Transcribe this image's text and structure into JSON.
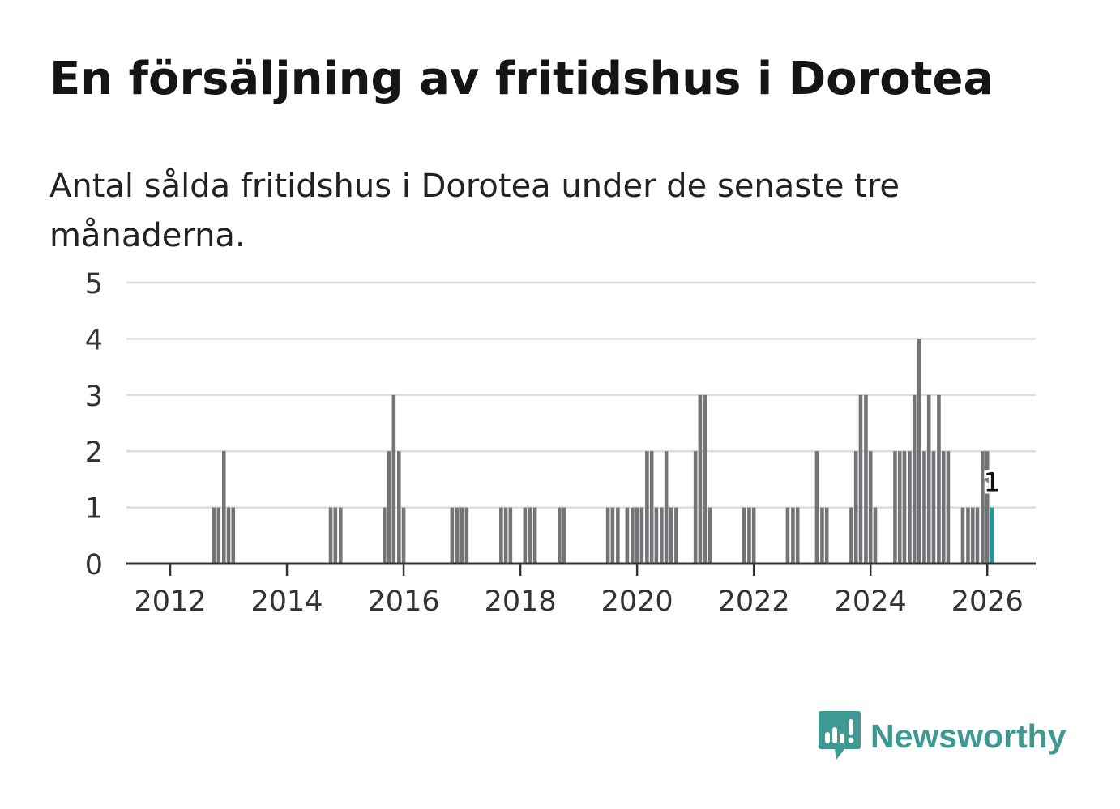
{
  "title": "En försäljning av fritidshus i Dorotea",
  "subtitle": "Antal sålda fritidshus i Dorotea under de senaste tre månaderna.",
  "brand": {
    "name": "Newsworthy",
    "color": "#3d9992",
    "icon": "newsworthy-logo-icon"
  },
  "colors": {
    "bar": "#737378",
    "highlight": "#1a9b9a",
    "grid": "#dddddd",
    "axis": "#333333",
    "text": "#333333"
  },
  "chart_data": {
    "type": "bar",
    "title": "En försäljning av fritidshus i Dorotea",
    "xlabel": "",
    "ylabel": "",
    "xlim": [
      2011.25,
      2026.83
    ],
    "ylim": [
      0,
      5
    ],
    "y_ticks": [
      0,
      1,
      2,
      3,
      4,
      5
    ],
    "x_ticks": [
      2012,
      2014,
      2016,
      2018,
      2020,
      2022,
      2024,
      2026
    ],
    "x_tick_labels": [
      "2012",
      "2014",
      "2016",
      "2018",
      "2020",
      "2022",
      "2024",
      "2026"
    ],
    "grid": true,
    "highlight_label": "1",
    "series": [
      {
        "name": "Antal sålda fritidshus",
        "points": [
          {
            "x": 2012.75,
            "y": 1
          },
          {
            "x": 2012.83,
            "y": 1
          },
          {
            "x": 2012.92,
            "y": 2
          },
          {
            "x": 2013.0,
            "y": 1
          },
          {
            "x": 2013.08,
            "y": 1
          },
          {
            "x": 2014.75,
            "y": 1
          },
          {
            "x": 2014.83,
            "y": 1
          },
          {
            "x": 2014.92,
            "y": 1
          },
          {
            "x": 2015.67,
            "y": 1
          },
          {
            "x": 2015.75,
            "y": 2
          },
          {
            "x": 2015.83,
            "y": 3
          },
          {
            "x": 2015.92,
            "y": 2
          },
          {
            "x": 2016.0,
            "y": 1
          },
          {
            "x": 2016.83,
            "y": 1
          },
          {
            "x": 2016.92,
            "y": 1
          },
          {
            "x": 2017.0,
            "y": 1
          },
          {
            "x": 2017.08,
            "y": 1
          },
          {
            "x": 2017.67,
            "y": 1
          },
          {
            "x": 2017.75,
            "y": 1
          },
          {
            "x": 2017.83,
            "y": 1
          },
          {
            "x": 2018.08,
            "y": 1
          },
          {
            "x": 2018.17,
            "y": 1
          },
          {
            "x": 2018.25,
            "y": 1
          },
          {
            "x": 2018.67,
            "y": 1
          },
          {
            "x": 2018.75,
            "y": 1
          },
          {
            "x": 2019.5,
            "y": 1
          },
          {
            "x": 2019.58,
            "y": 1
          },
          {
            "x": 2019.67,
            "y": 1
          },
          {
            "x": 2019.83,
            "y": 1
          },
          {
            "x": 2019.92,
            "y": 1
          },
          {
            "x": 2020.0,
            "y": 1
          },
          {
            "x": 2020.08,
            "y": 1
          },
          {
            "x": 2020.17,
            "y": 2
          },
          {
            "x": 2020.25,
            "y": 2
          },
          {
            "x": 2020.33,
            "y": 1
          },
          {
            "x": 2020.42,
            "y": 1
          },
          {
            "x": 2020.5,
            "y": 2
          },
          {
            "x": 2020.58,
            "y": 1
          },
          {
            "x": 2020.67,
            "y": 1
          },
          {
            "x": 2021.0,
            "y": 2
          },
          {
            "x": 2021.08,
            "y": 3
          },
          {
            "x": 2021.17,
            "y": 3
          },
          {
            "x": 2021.25,
            "y": 1
          },
          {
            "x": 2021.83,
            "y": 1
          },
          {
            "x": 2021.92,
            "y": 1
          },
          {
            "x": 2022.0,
            "y": 1
          },
          {
            "x": 2022.58,
            "y": 1
          },
          {
            "x": 2022.67,
            "y": 1
          },
          {
            "x": 2022.75,
            "y": 1
          },
          {
            "x": 2023.08,
            "y": 2
          },
          {
            "x": 2023.17,
            "y": 1
          },
          {
            "x": 2023.25,
            "y": 1
          },
          {
            "x": 2023.67,
            "y": 1
          },
          {
            "x": 2023.75,
            "y": 2
          },
          {
            "x": 2023.83,
            "y": 3
          },
          {
            "x": 2023.92,
            "y": 3
          },
          {
            "x": 2024.0,
            "y": 2
          },
          {
            "x": 2024.08,
            "y": 1
          },
          {
            "x": 2024.42,
            "y": 2
          },
          {
            "x": 2024.5,
            "y": 2
          },
          {
            "x": 2024.58,
            "y": 2
          },
          {
            "x": 2024.67,
            "y": 2
          },
          {
            "x": 2024.75,
            "y": 3
          },
          {
            "x": 2024.83,
            "y": 4
          },
          {
            "x": 2024.92,
            "y": 2
          },
          {
            "x": 2025.0,
            "y": 3
          },
          {
            "x": 2025.08,
            "y": 2
          },
          {
            "x": 2025.17,
            "y": 3
          },
          {
            "x": 2025.25,
            "y": 2
          },
          {
            "x": 2025.33,
            "y": 2
          },
          {
            "x": 2025.58,
            "y": 1
          },
          {
            "x": 2025.67,
            "y": 1
          },
          {
            "x": 2025.75,
            "y": 1
          },
          {
            "x": 2025.83,
            "y": 1
          },
          {
            "x": 2025.92,
            "y": 2
          },
          {
            "x": 2026.0,
            "y": 2
          },
          {
            "x": 2026.08,
            "y": 1,
            "highlight": true
          }
        ]
      }
    ]
  }
}
